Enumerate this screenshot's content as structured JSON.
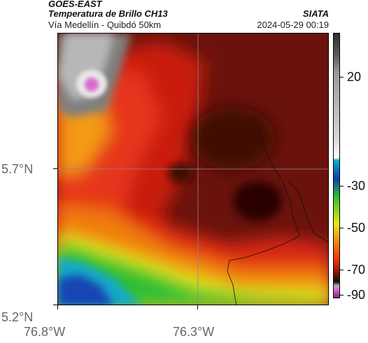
{
  "header": {
    "title_line1": "GOES-EAST",
    "title_line2": "Temperatura de Brillo CH13",
    "subtitle": "Vía Medellín - Quibdó 50km",
    "agency": "SIATA",
    "datetime": "2024-05-29 00:19"
  },
  "map": {
    "latitude_labels": [
      "5.7°N",
      "5.2°N"
    ],
    "longitude_labels": [
      "76.8°W",
      "76.3°W"
    ],
    "gridlines": true,
    "variable": "Brightness temperature (°C)"
  },
  "colorbar": {
    "tick_labels": [
      "20",
      "-30",
      "-50",
      "-70",
      "-90"
    ],
    "range": [
      -95,
      35
    ],
    "colors": {
      "very_cold": "#d66bd0",
      "cold": "#303030",
      "deep_red": "#5a0f0a",
      "red": "#e02810",
      "orange": "#f07a10",
      "yellow": "#e8e818",
      "green": "#30c030",
      "cyan": "#10b0c8",
      "blue": "#1040b0",
      "warm_gray": "#9a9a9a"
    }
  }
}
